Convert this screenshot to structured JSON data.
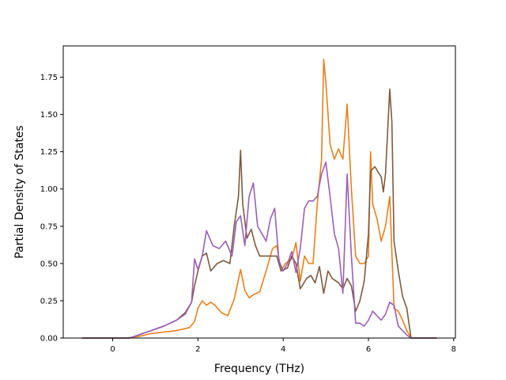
{
  "chart_data": {
    "type": "line",
    "title": "",
    "xlabel": "Frequency (THz)",
    "ylabel": "Partial Density of States",
    "xlim": [
      -1.16,
      8.04
    ],
    "ylim": [
      0.0,
      1.96
    ],
    "xticks": [
      0,
      2,
      4,
      6,
      8
    ],
    "xtick_labels": [
      "0",
      "2",
      "4",
      "6",
      "8"
    ],
    "yticks": [
      0.0,
      0.25,
      0.5,
      0.75,
      1.0,
      1.25,
      1.5,
      1.75
    ],
    "ytick_labels": [
      "0.00",
      "0.25",
      "0.50",
      "0.75",
      "1.00",
      "1.25",
      "1.50",
      "1.75"
    ],
    "grid": false,
    "legend": "none",
    "series": [
      {
        "color": "#e8801e",
        "points": [
          [
            -0.72,
            0.0
          ],
          [
            0.3,
            0.0
          ],
          [
            0.6,
            0.01
          ],
          [
            0.9,
            0.03
          ],
          [
            1.2,
            0.04
          ],
          [
            1.5,
            0.05
          ],
          [
            1.8,
            0.07
          ],
          [
            1.92,
            0.11
          ],
          [
            2.0,
            0.2
          ],
          [
            2.1,
            0.25
          ],
          [
            2.2,
            0.22
          ],
          [
            2.3,
            0.24
          ],
          [
            2.4,
            0.22
          ],
          [
            2.55,
            0.17
          ],
          [
            2.7,
            0.15
          ],
          [
            2.85,
            0.26
          ],
          [
            3.0,
            0.46
          ],
          [
            3.1,
            0.32
          ],
          [
            3.2,
            0.27
          ],
          [
            3.3,
            0.29
          ],
          [
            3.45,
            0.31
          ],
          [
            3.6,
            0.45
          ],
          [
            3.75,
            0.6
          ],
          [
            3.85,
            0.62
          ],
          [
            3.95,
            0.45
          ],
          [
            4.05,
            0.5
          ],
          [
            4.2,
            0.53
          ],
          [
            4.3,
            0.64
          ],
          [
            4.4,
            0.38
          ],
          [
            4.5,
            0.55
          ],
          [
            4.6,
            0.5
          ],
          [
            4.7,
            0.5
          ],
          [
            4.8,
            0.9
          ],
          [
            4.9,
            1.2
          ],
          [
            4.95,
            1.87
          ],
          [
            5.0,
            1.72
          ],
          [
            5.1,
            1.3
          ],
          [
            5.2,
            1.2
          ],
          [
            5.3,
            1.27
          ],
          [
            5.4,
            1.2
          ],
          [
            5.5,
            1.57
          ],
          [
            5.6,
            1.0
          ],
          [
            5.7,
            0.55
          ],
          [
            5.8,
            0.5
          ],
          [
            5.9,
            0.5
          ],
          [
            6.0,
            0.55
          ],
          [
            6.05,
            1.25
          ],
          [
            6.1,
            0.9
          ],
          [
            6.2,
            0.8
          ],
          [
            6.3,
            0.65
          ],
          [
            6.4,
            0.75
          ],
          [
            6.5,
            0.95
          ],
          [
            6.6,
            0.2
          ],
          [
            6.7,
            0.18
          ],
          [
            6.8,
            0.12
          ],
          [
            6.9,
            0.05
          ],
          [
            7.0,
            0.0
          ],
          [
            7.6,
            0.0
          ]
        ]
      },
      {
        "color": "#7f5a3e",
        "points": [
          [
            -0.72,
            0.0
          ],
          [
            0.4,
            0.0
          ],
          [
            0.6,
            0.02
          ],
          [
            0.9,
            0.05
          ],
          [
            1.2,
            0.08
          ],
          [
            1.5,
            0.12
          ],
          [
            1.7,
            0.17
          ],
          [
            1.85,
            0.24
          ],
          [
            1.92,
            0.35
          ],
          [
            2.0,
            0.45
          ],
          [
            2.1,
            0.55
          ],
          [
            2.2,
            0.57
          ],
          [
            2.3,
            0.45
          ],
          [
            2.45,
            0.5
          ],
          [
            2.6,
            0.52
          ],
          [
            2.75,
            0.5
          ],
          [
            2.85,
            0.75
          ],
          [
            2.95,
            0.95
          ],
          [
            3.0,
            1.26
          ],
          [
            3.05,
            0.9
          ],
          [
            3.15,
            0.67
          ],
          [
            3.25,
            0.73
          ],
          [
            3.35,
            0.62
          ],
          [
            3.45,
            0.55
          ],
          [
            3.6,
            0.55
          ],
          [
            3.75,
            0.55
          ],
          [
            3.85,
            0.55
          ],
          [
            3.95,
            0.45
          ],
          [
            4.1,
            0.47
          ],
          [
            4.2,
            0.55
          ],
          [
            4.3,
            0.5
          ],
          [
            4.4,
            0.33
          ],
          [
            4.55,
            0.4
          ],
          [
            4.65,
            0.42
          ],
          [
            4.75,
            0.37
          ],
          [
            4.85,
            0.48
          ],
          [
            4.95,
            0.3
          ],
          [
            5.05,
            0.45
          ],
          [
            5.15,
            0.4
          ],
          [
            5.3,
            0.37
          ],
          [
            5.4,
            0.33
          ],
          [
            5.5,
            0.4
          ],
          [
            5.6,
            0.35
          ],
          [
            5.7,
            0.18
          ],
          [
            5.8,
            0.25
          ],
          [
            5.9,
            0.38
          ],
          [
            6.0,
            0.7
          ],
          [
            6.05,
            1.12
          ],
          [
            6.15,
            1.15
          ],
          [
            6.3,
            1.08
          ],
          [
            6.35,
            0.98
          ],
          [
            6.4,
            1.1
          ],
          [
            6.5,
            1.67
          ],
          [
            6.55,
            1.45
          ],
          [
            6.6,
            0.65
          ],
          [
            6.7,
            0.45
          ],
          [
            6.8,
            0.28
          ],
          [
            6.9,
            0.2
          ],
          [
            7.0,
            0.0
          ],
          [
            7.6,
            0.0
          ]
        ]
      },
      {
        "color": "#9b5fb5",
        "points": [
          [
            -0.72,
            0.0
          ],
          [
            0.4,
            0.0
          ],
          [
            0.6,
            0.02
          ],
          [
            0.9,
            0.05
          ],
          [
            1.2,
            0.08
          ],
          [
            1.5,
            0.12
          ],
          [
            1.7,
            0.16
          ],
          [
            1.85,
            0.24
          ],
          [
            1.92,
            0.53
          ],
          [
            2.0,
            0.46
          ],
          [
            2.1,
            0.55
          ],
          [
            2.2,
            0.72
          ],
          [
            2.35,
            0.62
          ],
          [
            2.5,
            0.6
          ],
          [
            2.65,
            0.65
          ],
          [
            2.8,
            0.55
          ],
          [
            2.9,
            0.78
          ],
          [
            3.0,
            0.82
          ],
          [
            3.1,
            0.62
          ],
          [
            3.2,
            0.95
          ],
          [
            3.3,
            1.04
          ],
          [
            3.4,
            0.75
          ],
          [
            3.5,
            0.7
          ],
          [
            3.6,
            0.65
          ],
          [
            3.7,
            0.8
          ],
          [
            3.8,
            0.87
          ],
          [
            3.9,
            0.52
          ],
          [
            4.0,
            0.45
          ],
          [
            4.1,
            0.5
          ],
          [
            4.2,
            0.58
          ],
          [
            4.3,
            0.44
          ],
          [
            4.4,
            0.6
          ],
          [
            4.5,
            0.87
          ],
          [
            4.6,
            0.92
          ],
          [
            4.7,
            0.92
          ],
          [
            4.8,
            0.95
          ],
          [
            4.9,
            1.1
          ],
          [
            5.0,
            1.18
          ],
          [
            5.1,
            0.95
          ],
          [
            5.2,
            0.7
          ],
          [
            5.3,
            0.6
          ],
          [
            5.4,
            0.3
          ],
          [
            5.5,
            1.1
          ],
          [
            5.6,
            0.55
          ],
          [
            5.7,
            0.1
          ],
          [
            5.8,
            0.1
          ],
          [
            5.9,
            0.08
          ],
          [
            6.0,
            0.12
          ],
          [
            6.1,
            0.18
          ],
          [
            6.2,
            0.15
          ],
          [
            6.3,
            0.12
          ],
          [
            6.4,
            0.16
          ],
          [
            6.5,
            0.24
          ],
          [
            6.6,
            0.22
          ],
          [
            6.7,
            0.08
          ],
          [
            6.8,
            0.05
          ],
          [
            6.9,
            0.02
          ],
          [
            7.0,
            0.0
          ],
          [
            7.6,
            0.0
          ]
        ]
      }
    ]
  }
}
